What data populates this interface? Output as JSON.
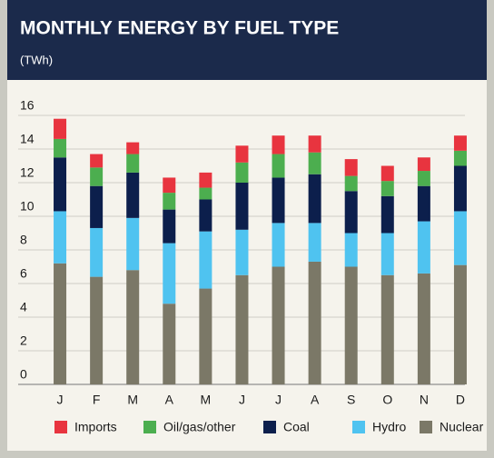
{
  "chart_data": {
    "type": "stacked_bar",
    "title": "MONTHLY ENERGY BY FUEL TYPE",
    "subtitle": "(TWh)",
    "categories": [
      "J",
      "F",
      "M",
      "A",
      "M",
      "J",
      "J",
      "A",
      "S",
      "O",
      "N",
      "D"
    ],
    "series": [
      {
        "name": "Imports",
        "color": "#e8343f",
        "values": [
          1.2,
          0.8,
          0.7,
          0.9,
          0.9,
          1.0,
          1.1,
          1.0,
          1.0,
          0.9,
          0.8,
          0.9
        ]
      },
      {
        "name": "Oil/gas/other",
        "color": "#4cae4f",
        "values": [
          1.1,
          1.1,
          1.1,
          1.0,
          0.7,
          1.2,
          1.4,
          1.3,
          0.9,
          0.9,
          0.9,
          0.9
        ]
      },
      {
        "name": "Coal",
        "color": "#0c1f4c",
        "values": [
          3.2,
          2.5,
          2.7,
          2.0,
          1.9,
          2.8,
          2.7,
          2.9,
          2.5,
          2.2,
          2.1,
          2.7
        ]
      },
      {
        "name": "Hydro",
        "color": "#4fc3f0",
        "values": [
          3.1,
          2.9,
          3.1,
          3.6,
          3.4,
          2.7,
          2.6,
          2.3,
          2.0,
          2.5,
          3.1,
          3.2
        ]
      },
      {
        "name": "Nuclear",
        "color": "#7b7867",
        "values": [
          7.2,
          6.4,
          6.8,
          4.8,
          5.7,
          6.5,
          7.0,
          7.3,
          7.0,
          6.5,
          6.6,
          7.1
        ]
      }
    ],
    "stack_order": "bottom_up_from_last",
    "ylim": [
      0,
      16
    ],
    "yticks": [
      0,
      2,
      4,
      6,
      8,
      10,
      12,
      14,
      16
    ],
    "grid": true,
    "legend": "bottom"
  }
}
